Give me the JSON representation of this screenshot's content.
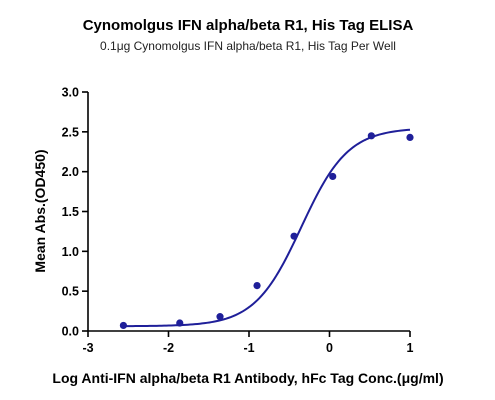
{
  "chart_data": {
    "type": "scatter",
    "title": "Cynomolgus IFN alpha/beta R1, His Tag ELISA",
    "subtitle": "0.1μg Cynomolgus IFN alpha/beta R1, His Tag Per Well",
    "xlabel": "Log Anti-IFN alpha/beta R1 Antibody, hFc Tag Conc.(μg/ml)",
    "ylabel": "Mean Abs.(OD450)",
    "xlim": [
      -3,
      1
    ],
    "ylim": [
      0,
      3.0
    ],
    "x_ticks": [
      -3,
      -2,
      -1,
      0,
      1
    ],
    "y_ticks": [
      0.0,
      0.5,
      1.0,
      1.5,
      2.0,
      2.5,
      3.0
    ],
    "x_tick_labels": [
      "-3",
      "-2",
      "-1",
      "0",
      "1"
    ],
    "y_tick_labels": [
      "0.0",
      "0.5",
      "1.0",
      "1.5",
      "2.0",
      "2.5",
      "3.0"
    ],
    "grid": false,
    "color": "#1f1f99",
    "series": [
      {
        "points": [
          {
            "x": -2.56,
            "y": 0.07
          },
          {
            "x": -1.86,
            "y": 0.1
          },
          {
            "x": -1.36,
            "y": 0.18
          },
          {
            "x": -0.9,
            "y": 0.57
          },
          {
            "x": -0.44,
            "y": 1.19
          },
          {
            "x": 0.04,
            "y": 1.94
          },
          {
            "x": 0.52,
            "y": 2.45
          },
          {
            "x": 1.0,
            "y": 2.43
          }
        ],
        "fit": {
          "bottom": 0.06,
          "top": 2.55,
          "logEC50": -0.35,
          "hill": 1.5
        }
      }
    ]
  }
}
